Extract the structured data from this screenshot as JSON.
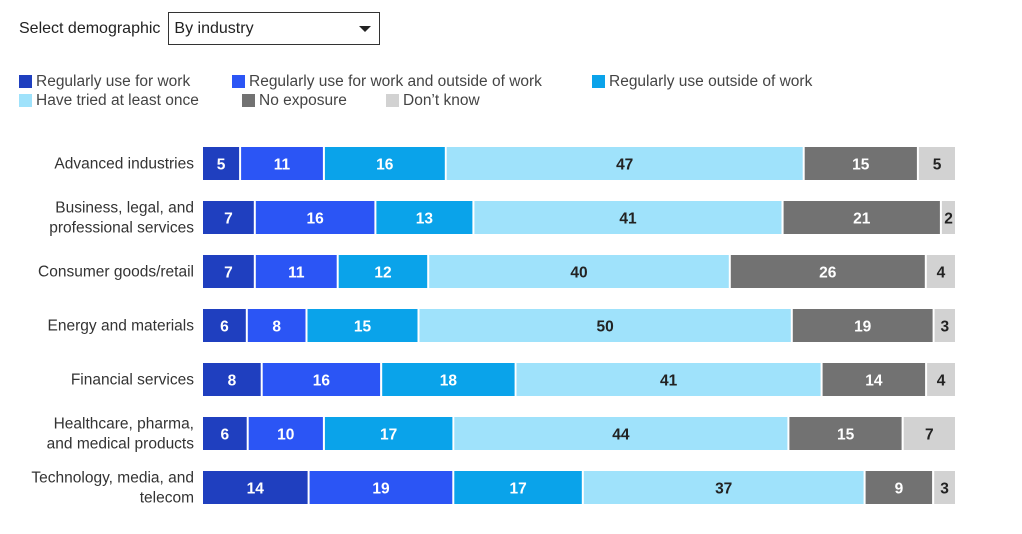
{
  "selector": {
    "label": "Select demographic",
    "value": "By industry"
  },
  "legend": [
    {
      "label": "Regularly use for work",
      "color": "#1f3fbf"
    },
    {
      "label": "Regularly use for work and outside of work",
      "color": "#2b55f5"
    },
    {
      "label": "Regularly use outside of work",
      "color": "#0aa3ea"
    },
    {
      "label": "Have tried at least once",
      "color": "#9fe2fb"
    },
    {
      "label": "No exposure",
      "color": "#727272"
    },
    {
      "label": "Don’t know",
      "color": "#d2d2d2"
    }
  ],
  "chart_data": {
    "type": "bar",
    "orientation": "horizontal-stacked-100",
    "categories": [
      [
        "Advanced industries"
      ],
      [
        "Business, legal, and",
        "professional services"
      ],
      [
        "Consumer goods/retail"
      ],
      [
        "Energy and materials"
      ],
      [
        "Financial services"
      ],
      [
        "Healthcare, pharma,",
        "and medical products"
      ],
      [
        "Technology, media, and",
        "telecom"
      ]
    ],
    "series": [
      {
        "name": "Regularly use for work",
        "values": [
          5,
          7,
          7,
          6,
          8,
          6,
          14
        ]
      },
      {
        "name": "Regularly use for work and outside of work",
        "values": [
          11,
          16,
          11,
          8,
          16,
          10,
          19
        ]
      },
      {
        "name": "Regularly use outside of work",
        "values": [
          16,
          13,
          12,
          15,
          18,
          17,
          17
        ]
      },
      {
        "name": "Have tried at least once",
        "values": [
          47,
          41,
          40,
          50,
          41,
          44,
          37
        ]
      },
      {
        "name": "No exposure",
        "values": [
          15,
          21,
          26,
          19,
          14,
          15,
          9
        ]
      },
      {
        "name": "Don’t know",
        "values": [
          5,
          2,
          4,
          3,
          4,
          7,
          3
        ]
      }
    ],
    "label_colors": [
      "#ffffff",
      "#ffffff",
      "#ffffff",
      "#222222",
      "#ffffff",
      "#222222"
    ]
  }
}
